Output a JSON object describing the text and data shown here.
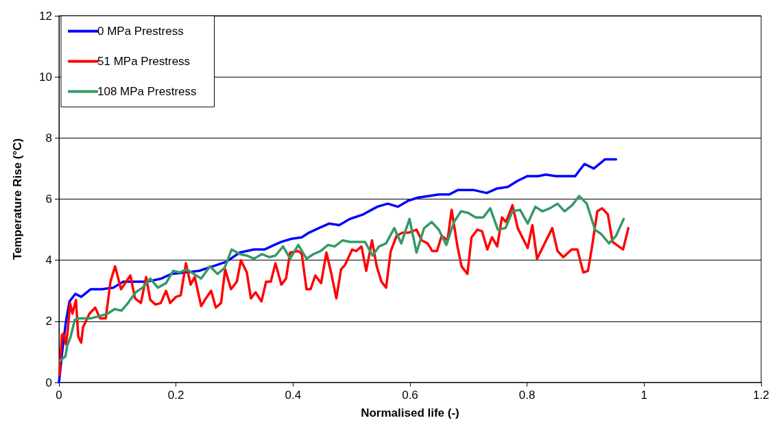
{
  "chart_data": {
    "type": "line",
    "xlabel": "Normalised life (-)",
    "ylabel": "Temperature Rise (°C)",
    "xlim": [
      0,
      1.2
    ],
    "xticks": [
      0,
      0.2,
      0.4,
      0.6,
      0.8,
      1,
      1.2
    ],
    "ylim": [
      0,
      12
    ],
    "yticks": [
      0,
      2,
      4,
      6,
      8,
      10,
      12
    ],
    "grid": "y",
    "legend": "top left",
    "marker": "none",
    "line_style": "solid",
    "series": [
      {
        "name": "0 MPa Prestress",
        "color": "#0000ff",
        "x": [
          0,
          0.006,
          0.012,
          0.018,
          0.028,
          0.038,
          0.054,
          0.073,
          0.093,
          0.11,
          0.131,
          0.151,
          0.175,
          0.192,
          0.216,
          0.239,
          0.263,
          0.286,
          0.309,
          0.333,
          0.351,
          0.368,
          0.38,
          0.397,
          0.415,
          0.427,
          0.444,
          0.462,
          0.479,
          0.497,
          0.52,
          0.544,
          0.562,
          0.579,
          0.597,
          0.614,
          0.632,
          0.649,
          0.667,
          0.682,
          0.708,
          0.731,
          0.749,
          0.767,
          0.784,
          0.8,
          0.819,
          0.832,
          0.849,
          0.882,
          0.898,
          0.914,
          0.933,
          0.952
        ],
        "values": [
          0,
          1.08,
          2.0,
          2.65,
          2.9,
          2.8,
          3.05,
          3.05,
          3.1,
          3.3,
          3.3,
          3.3,
          3.4,
          3.55,
          3.6,
          3.65,
          3.8,
          3.95,
          4.25,
          4.35,
          4.35,
          4.5,
          4.6,
          4.7,
          4.75,
          4.9,
          5.05,
          5.2,
          5.15,
          5.35,
          5.5,
          5.75,
          5.85,
          5.75,
          5.95,
          6.05,
          6.1,
          6.15,
          6.15,
          6.3,
          6.3,
          6.2,
          6.35,
          6.4,
          6.6,
          6.75,
          6.75,
          6.8,
          6.75,
          6.75,
          7.15,
          7.0,
          7.3,
          7.3
        ]
      },
      {
        "name": "51 MPa Prestress",
        "color": "#ff0000",
        "x": [
          0.001,
          0.005,
          0.008,
          0.012,
          0.015,
          0.019,
          0.023,
          0.029,
          0.033,
          0.038,
          0.041,
          0.052,
          0.062,
          0.07,
          0.08,
          0.088,
          0.096,
          0.106,
          0.122,
          0.13,
          0.14,
          0.149,
          0.156,
          0.165,
          0.174,
          0.183,
          0.19,
          0.2,
          0.208,
          0.217,
          0.225,
          0.232,
          0.243,
          0.251,
          0.26,
          0.268,
          0.277,
          0.284,
          0.294,
          0.304,
          0.311,
          0.321,
          0.328,
          0.336,
          0.346,
          0.354,
          0.362,
          0.37,
          0.38,
          0.388,
          0.395,
          0.409,
          0.415,
          0.423,
          0.43,
          0.438,
          0.448,
          0.457,
          0.465,
          0.474,
          0.482,
          0.489,
          0.501,
          0.508,
          0.517,
          0.525,
          0.535,
          0.543,
          0.551,
          0.559,
          0.567,
          0.577,
          0.587,
          0.597,
          0.611,
          0.62,
          0.63,
          0.638,
          0.646,
          0.654,
          0.664,
          0.671,
          0.681,
          0.688,
          0.698,
          0.705,
          0.715,
          0.723,
          0.732,
          0.74,
          0.749,
          0.757,
          0.764,
          0.775,
          0.784,
          0.801,
          0.809,
          0.817,
          0.843,
          0.852,
          0.862,
          0.876,
          0.886,
          0.896,
          0.904,
          0.911,
          0.92,
          0.928,
          0.938,
          0.946,
          0.964,
          0.973
        ],
        "values": [
          0.25,
          1.55,
          1.6,
          1.25,
          1.7,
          2.6,
          2.25,
          2.7,
          1.5,
          1.3,
          1.8,
          2.25,
          2.45,
          2.1,
          2.1,
          3.3,
          3.8,
          3.05,
          3.5,
          2.75,
          2.6,
          3.45,
          2.7,
          2.55,
          2.6,
          3.0,
          2.6,
          2.8,
          2.85,
          3.9,
          3.2,
          3.45,
          2.5,
          2.75,
          3.0,
          2.45,
          2.6,
          3.7,
          3.05,
          3.3,
          4.0,
          3.6,
          2.75,
          2.95,
          2.65,
          3.3,
          3.3,
          3.9,
          3.2,
          3.4,
          4.25,
          4.3,
          4.2,
          3.05,
          3.05,
          3.5,
          3.25,
          4.25,
          3.6,
          2.75,
          3.7,
          3.85,
          4.35,
          4.3,
          4.45,
          3.65,
          4.65,
          3.8,
          3.3,
          3.1,
          4.3,
          4.8,
          4.9,
          4.9,
          5.0,
          4.65,
          4.55,
          4.3,
          4.3,
          4.8,
          4.65,
          5.65,
          4.45,
          3.8,
          3.55,
          4.75,
          5.0,
          4.95,
          4.35,
          4.75,
          4.45,
          5.4,
          5.25,
          5.8,
          5.05,
          4.4,
          5.15,
          4.05,
          5.05,
          4.3,
          4.1,
          4.35,
          4.35,
          3.6,
          3.65,
          4.45,
          5.6,
          5.7,
          5.5,
          4.6,
          4.35,
          5.05
        ]
      },
      {
        "name": "108 MPa Prestress",
        "color": "#339966",
        "x": [
          0.001,
          0.011,
          0.014,
          0.02,
          0.027,
          0.036,
          0.055,
          0.075,
          0.083,
          0.095,
          0.107,
          0.118,
          0.131,
          0.143,
          0.156,
          0.169,
          0.183,
          0.195,
          0.206,
          0.218,
          0.243,
          0.258,
          0.271,
          0.283,
          0.295,
          0.309,
          0.321,
          0.333,
          0.347,
          0.359,
          0.37,
          0.383,
          0.395,
          0.409,
          0.423,
          0.435,
          0.447,
          0.46,
          0.471,
          0.485,
          0.497,
          0.523,
          0.536,
          0.547,
          0.559,
          0.573,
          0.585,
          0.599,
          0.611,
          0.624,
          0.637,
          0.649,
          0.662,
          0.675,
          0.687,
          0.699,
          0.712,
          0.725,
          0.737,
          0.75,
          0.763,
          0.775,
          0.788,
          0.801,
          0.814,
          0.826,
          0.839,
          0.852,
          0.864,
          0.877,
          0.889,
          0.902,
          0.916,
          0.927,
          0.94,
          0.952,
          0.965
        ],
        "values": [
          0.7,
          0.85,
          1.2,
          1.5,
          2.05,
          2.1,
          2.1,
          2.2,
          2.25,
          2.4,
          2.35,
          2.6,
          2.95,
          3.1,
          3.4,
          3.1,
          3.25,
          3.65,
          3.6,
          3.7,
          3.4,
          3.8,
          3.55,
          3.75,
          4.35,
          4.2,
          4.15,
          4.05,
          4.2,
          4.1,
          4.15,
          4.45,
          4.05,
          4.5,
          4.05,
          4.2,
          4.3,
          4.5,
          4.45,
          4.65,
          4.6,
          4.6,
          4.15,
          4.45,
          4.55,
          5.05,
          4.55,
          5.35,
          4.25,
          5.05,
          5.25,
          5.0,
          4.5,
          5.25,
          5.6,
          5.55,
          5.4,
          5.4,
          5.7,
          5.0,
          5.05,
          5.6,
          5.65,
          5.2,
          5.75,
          5.6,
          5.7,
          5.85,
          5.6,
          5.8,
          6.1,
          5.85,
          5.0,
          4.85,
          4.55,
          4.8,
          5.35
        ]
      }
    ]
  }
}
